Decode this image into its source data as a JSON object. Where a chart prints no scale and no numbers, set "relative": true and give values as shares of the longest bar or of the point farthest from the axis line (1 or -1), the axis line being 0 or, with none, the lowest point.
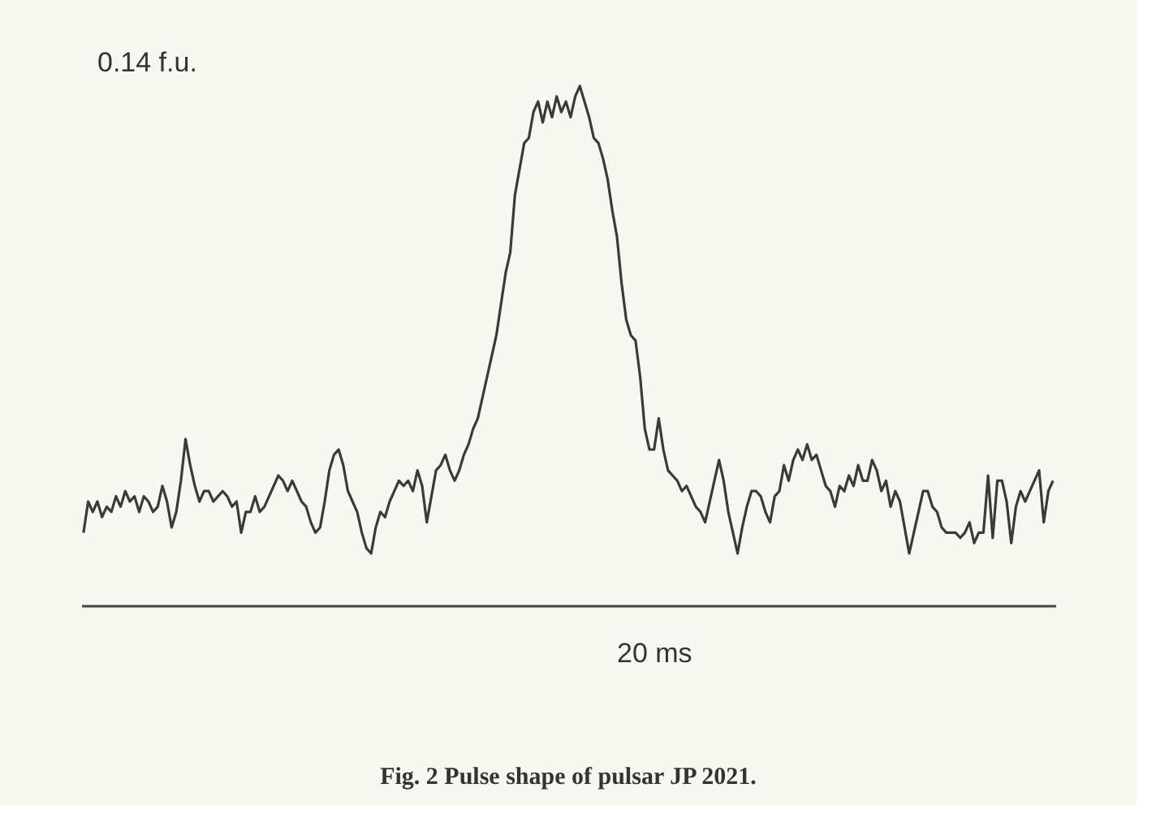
{
  "chart_data": {
    "type": "line",
    "title": "Fig. 2  Pulse shape of pulsar JP 2021.",
    "relative": true,
    "tick_labels": false,
    "grid": false,
    "annotations": [
      "0.14 f.u.",
      "20 ms"
    ],
    "categories": [
      null,
      null,
      null,
      null,
      null,
      null,
      null,
      null,
      null,
      null,
      null,
      null,
      null,
      null,
      null,
      null,
      null,
      null,
      null,
      null,
      null,
      null,
      null,
      null,
      null,
      null,
      null,
      null,
      null,
      null,
      null,
      null,
      null,
      null,
      null,
      null,
      null,
      null,
      null,
      null,
      null,
      null,
      null,
      null,
      null,
      null,
      null,
      null,
      null,
      null,
      null,
      null,
      null,
      null,
      null,
      null,
      null,
      null,
      null,
      null,
      null,
      null,
      null,
      null,
      null,
      null,
      null,
      null,
      null,
      null,
      null,
      null,
      null,
      null,
      null,
      null,
      null,
      null,
      null,
      null,
      null,
      null,
      null,
      null,
      null,
      null,
      null,
      null,
      null,
      null,
      null,
      null,
      null,
      null,
      null,
      null,
      null,
      null,
      null,
      null,
      null,
      null,
      null,
      null,
      null,
      null,
      null,
      null,
      null,
      null,
      null,
      null,
      null,
      null,
      null,
      null,
      null,
      null,
      null,
      null,
      null,
      null,
      null,
      null,
      null,
      null,
      null,
      null,
      null,
      null,
      null,
      null,
      null,
      null,
      null,
      null,
      null,
      null,
      null,
      null,
      null,
      null,
      null,
      null,
      null,
      null,
      null,
      null,
      null,
      null,
      null,
      null,
      null,
      null,
      null,
      null,
      null,
      null,
      null,
      null,
      null,
      null,
      null,
      null,
      null,
      null,
      null,
      null,
      null,
      null,
      null,
      null,
      null,
      null,
      null,
      null,
      null,
      null,
      null,
      null,
      null,
      null,
      null,
      null,
      null,
      null,
      null,
      null,
      null,
      null,
      null,
      null,
      null,
      null,
      null,
      null,
      null,
      null,
      null,
      null,
      null,
      null,
      null,
      null,
      null,
      null,
      null,
      null,
      null,
      null
    ],
    "series": [
      {
        "color": "#3a3a3a",
        "values": [
          0.14,
          0.2,
          0.18,
          0.2,
          0.17,
          0.19,
          0.18,
          0.21,
          0.19,
          0.22,
          0.2,
          0.21,
          0.18,
          0.21,
          0.2,
          0.18,
          0.19,
          0.23,
          0.2,
          0.15,
          0.18,
          0.24,
          0.32,
          0.27,
          0.23,
          0.2,
          0.22,
          0.22,
          0.2,
          0.21,
          0.22,
          0.21,
          0.19,
          0.2,
          0.14,
          0.18,
          0.18,
          0.21,
          0.18,
          0.19,
          0.21,
          0.23,
          0.25,
          0.24,
          0.22,
          0.24,
          0.22,
          0.2,
          0.19,
          0.16,
          0.14,
          0.15,
          0.2,
          0.26,
          0.29,
          0.3,
          0.27,
          0.22,
          0.2,
          0.18,
          0.14,
          0.11,
          0.1,
          0.15,
          0.18,
          0.17,
          0.2,
          0.22,
          0.24,
          0.23,
          0.24,
          0.22,
          0.26,
          0.23,
          0.16,
          0.21,
          0.26,
          0.27,
          0.29,
          0.26,
          0.24,
          0.26,
          0.29,
          0.31,
          0.34,
          0.36,
          0.4,
          0.44,
          0.48,
          0.52,
          0.58,
          0.64,
          0.68,
          0.79,
          0.84,
          0.89,
          0.9,
          0.95,
          0.97,
          0.93,
          0.97,
          0.94,
          0.98,
          0.95,
          0.97,
          0.94,
          0.98,
          1.0,
          0.97,
          0.94,
          0.9,
          0.89,
          0.86,
          0.82,
          0.76,
          0.71,
          0.62,
          0.55,
          0.52,
          0.51,
          0.44,
          0.34,
          0.3,
          0.3,
          0.36,
          0.3,
          0.26,
          0.25,
          0.24,
          0.22,
          0.23,
          0.21,
          0.19,
          0.18,
          0.16,
          0.2,
          0.24,
          0.28,
          0.24,
          0.18,
          0.14,
          0.1,
          0.15,
          0.19,
          0.22,
          0.22,
          0.21,
          0.18,
          0.16,
          0.21,
          0.22,
          0.27,
          0.24,
          0.28,
          0.3,
          0.28,
          0.31,
          0.28,
          0.29,
          0.26,
          0.23,
          0.22,
          0.19,
          0.23,
          0.22,
          0.25,
          0.23,
          0.27,
          0.24,
          0.24,
          0.28,
          0.26,
          0.22,
          0.24,
          0.19,
          0.22,
          0.2,
          0.15,
          0.1,
          0.14,
          0.18,
          0.22,
          0.22,
          0.19,
          0.18,
          0.15,
          0.14,
          0.14,
          0.14,
          0.13,
          0.14,
          0.16,
          0.12,
          0.14,
          0.14,
          0.25,
          0.13,
          0.24,
          0.24,
          0.2,
          0.12,
          0.19,
          0.22,
          0.2,
          0.22,
          0.24,
          0.26,
          0.16,
          0.22,
          0.24
        ]
      }
    ]
  }
}
